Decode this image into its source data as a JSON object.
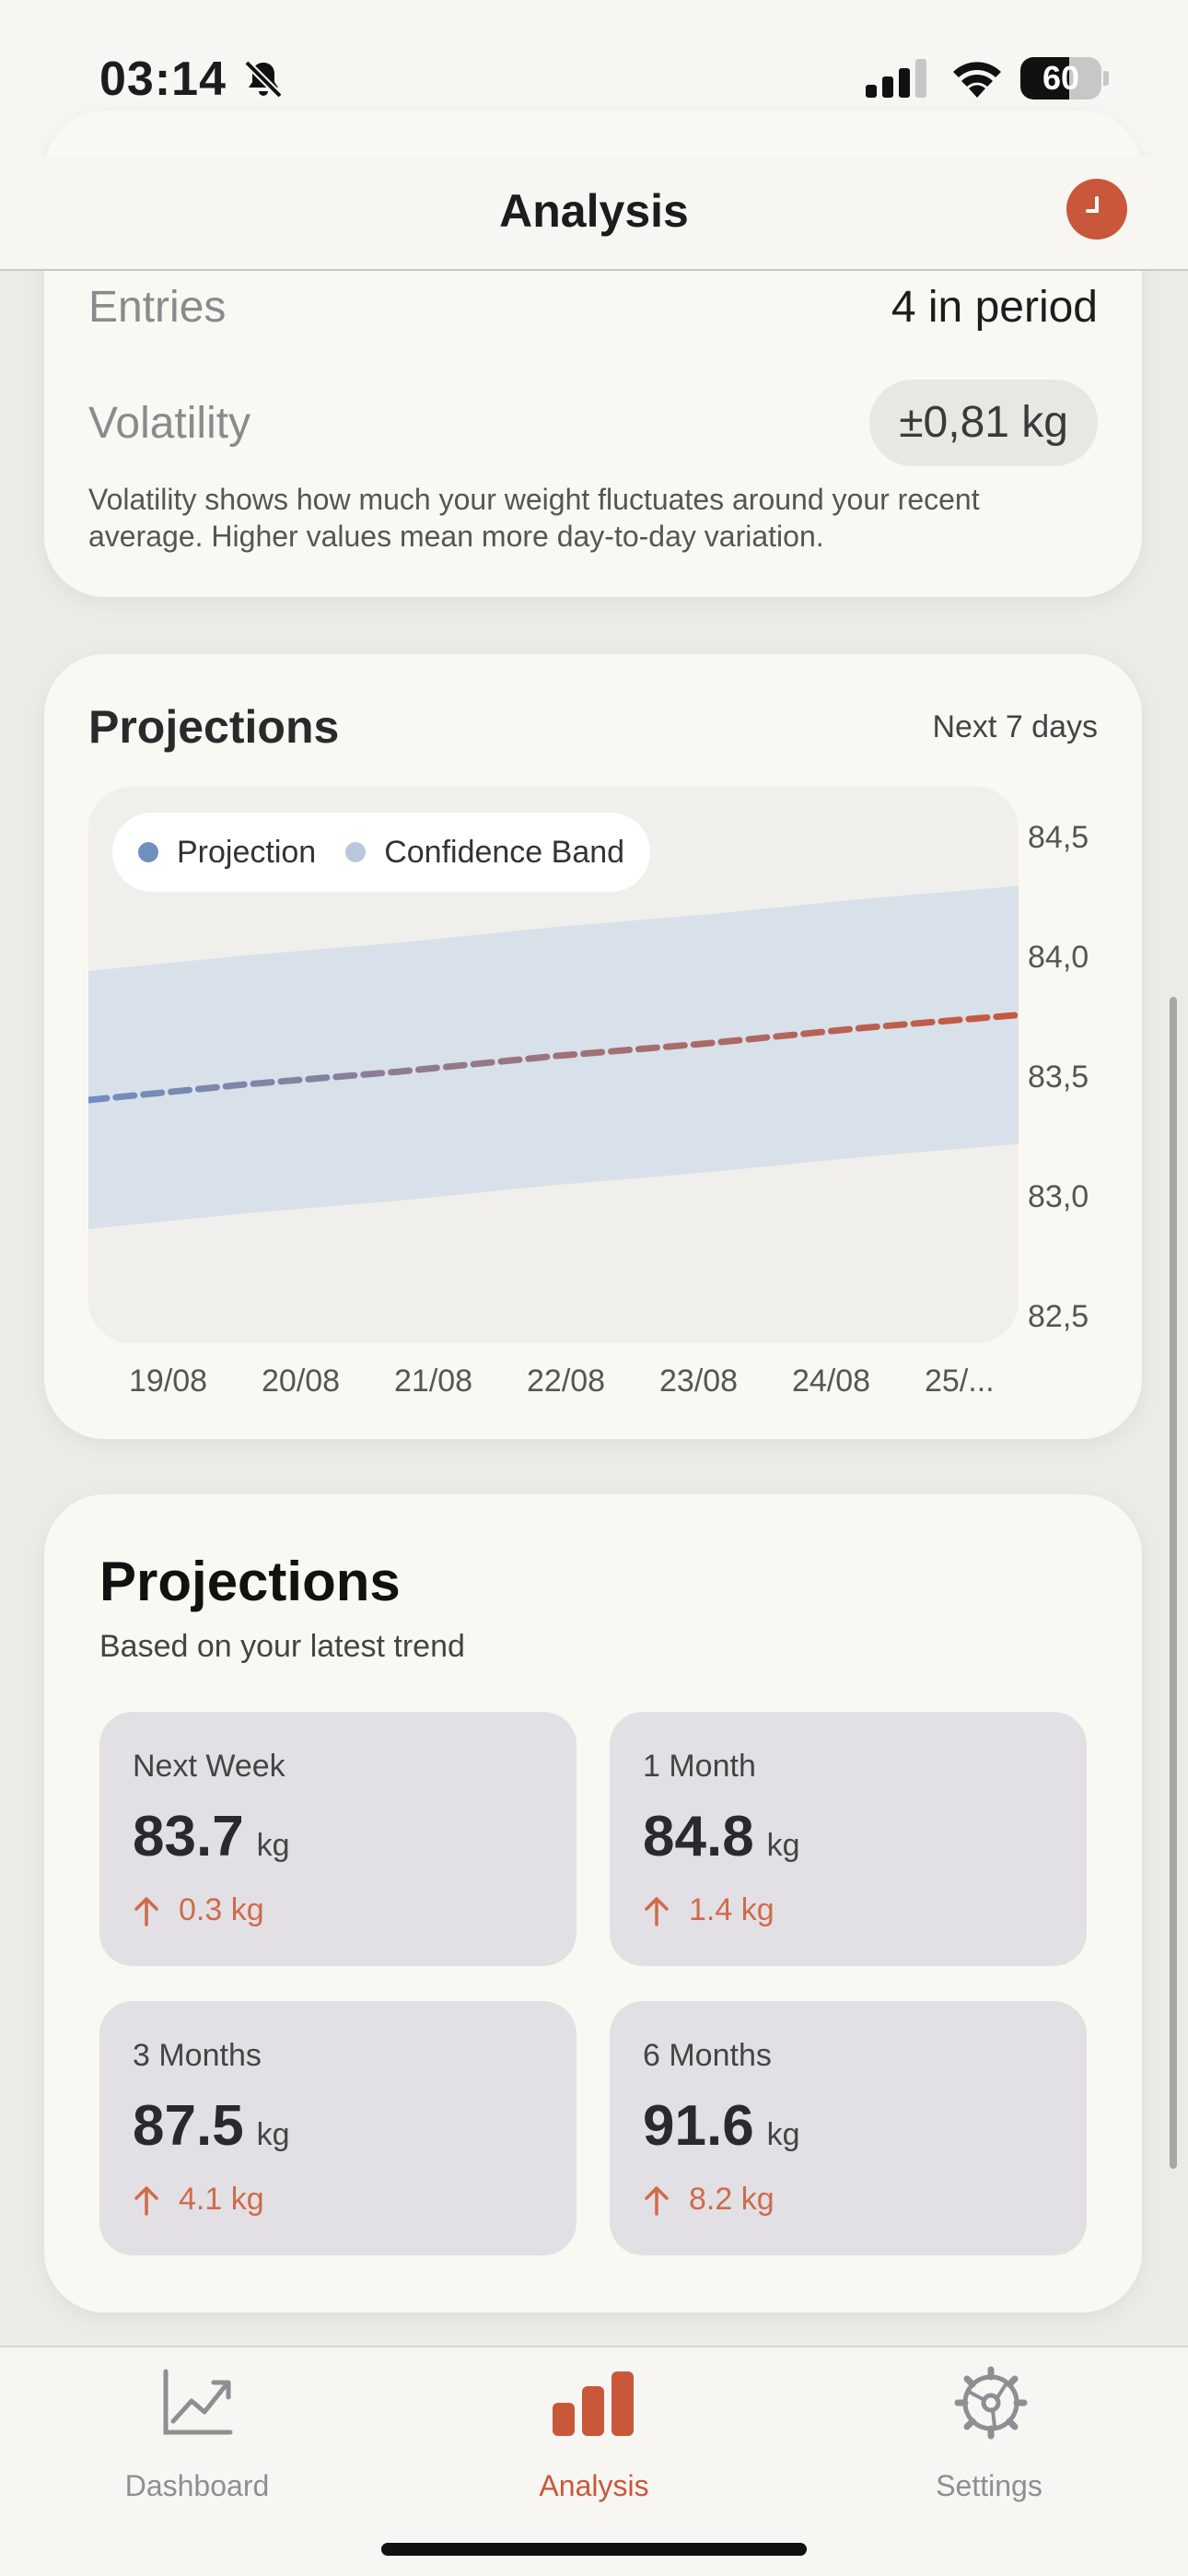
{
  "status_bar": {
    "time": "03:14",
    "battery": "60",
    "battery_level": 0.6
  },
  "nav": {
    "title": "Analysis"
  },
  "stats": {
    "entries_label": "Entries",
    "entries_value": "4 in period",
    "volatility_label": "Volatility",
    "volatility_value": "±0,81 kg",
    "volatility_description": "Volatility shows how much your weight fluctuates around your recent average. Higher values mean more day-to-day variation."
  },
  "projection_chart": {
    "title": "Projections",
    "period": "Next 7 days",
    "legend": {
      "projection": "Projection",
      "confidence": "Confidence Band"
    },
    "y_ticks": [
      "84,5",
      "84,0",
      "83,5",
      "83,0",
      "82,5"
    ],
    "x_ticks": [
      "19/08",
      "20/08",
      "21/08",
      "22/08",
      "23/08",
      "24/08",
      "25/..."
    ],
    "colors": {
      "projection_start": "#6f8fbf",
      "projection_end": "#c9573a",
      "band": "#d8e0ea"
    }
  },
  "chart_data": {
    "type": "line",
    "x": [
      "19/08",
      "20/08",
      "21/08",
      "22/08",
      "23/08",
      "24/08",
      "25/08"
    ],
    "series": [
      {
        "name": "Projection",
        "values": [
          83.4,
          83.46,
          83.51,
          83.57,
          83.62,
          83.68,
          83.73
        ]
      },
      {
        "name": "Confidence Band",
        "lower": [
          82.9,
          82.96,
          83.01,
          83.07,
          83.12,
          83.18,
          83.23
        ],
        "upper": [
          83.9,
          83.96,
          84.01,
          84.07,
          84.12,
          84.18,
          84.23
        ]
      }
    ],
    "ylim": [
      82.5,
      84.5
    ],
    "xlabel": "",
    "ylabel": "",
    "legend": "top-left",
    "grid": false
  },
  "projections": {
    "title": "Projections",
    "subtitle": "Based on your latest trend",
    "tiles": [
      {
        "label": "Next Week",
        "value": "83.7",
        "unit": "kg",
        "change": "0.3 kg"
      },
      {
        "label": "1 Month",
        "value": "84.8",
        "unit": "kg",
        "change": "1.4 kg"
      },
      {
        "label": "3 Months",
        "value": "87.5",
        "unit": "kg",
        "change": "4.1 kg"
      },
      {
        "label": "6 Months",
        "value": "91.6",
        "unit": "kg",
        "change": "8.2 kg"
      }
    ]
  },
  "tabs": [
    {
      "label": "Dashboard",
      "icon": "chart-line-icon",
      "active": false
    },
    {
      "label": "Analysis",
      "icon": "bar-chart-icon",
      "active": true
    },
    {
      "label": "Settings",
      "icon": "gear-icon",
      "active": false
    }
  ],
  "colors": {
    "accent": "#c9573a",
    "inactive_tab": "#8e8e93",
    "change_up": "#d06a4a"
  }
}
